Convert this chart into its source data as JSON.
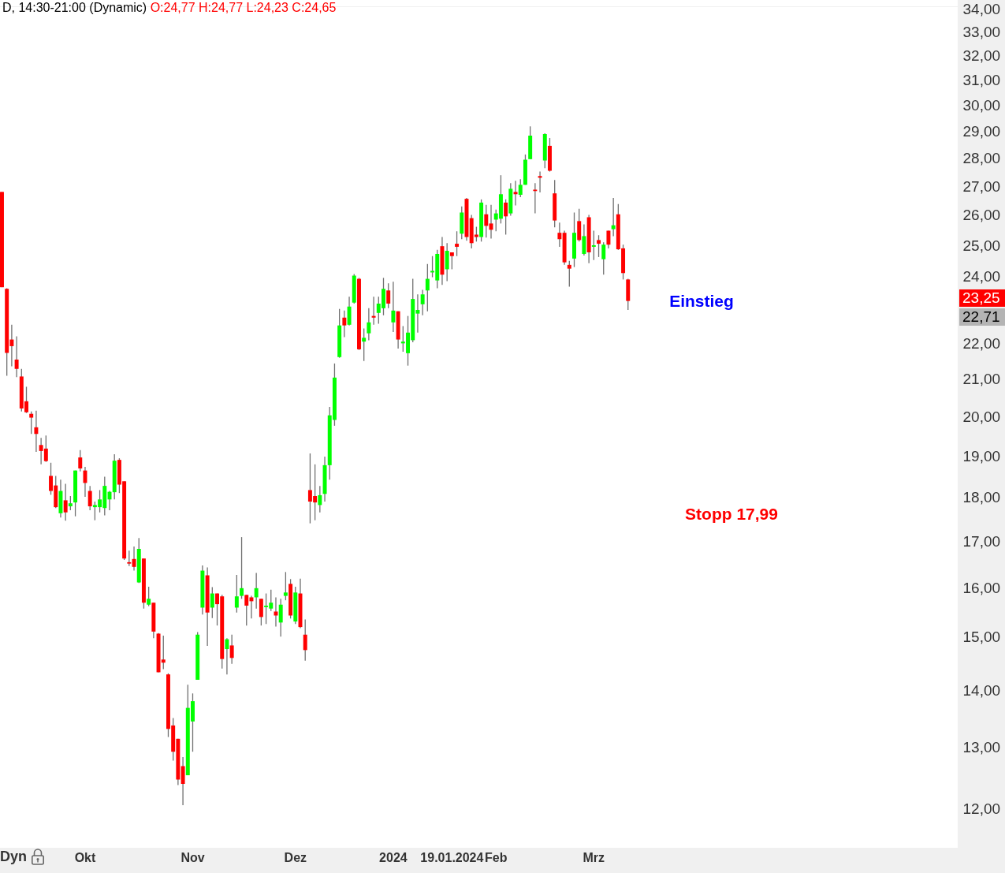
{
  "chart_data": {
    "type": "candlestick",
    "title": "D, 14:30-21:00 (Dynamic)",
    "subtitle": "O:24,77 H:24,77 L:24,23 C:24,65",
    "categories": [
      null,
      null,
      null,
      null,
      null,
      null,
      null,
      null,
      null,
      null,
      null,
      null,
      null,
      null,
      null,
      null,
      null,
      "Okt",
      null,
      null,
      null,
      null,
      null,
      null,
      null,
      null,
      null,
      null,
      null,
      null,
      null,
      null,
      null,
      null,
      null,
      null,
      null,
      null,
      null,
      "Nov",
      null,
      null,
      null,
      null,
      null,
      null,
      null,
      null,
      null,
      null,
      null,
      null,
      null,
      null,
      null,
      null,
      null,
      null,
      null,
      null,
      "Dez",
      null,
      null,
      null,
      null,
      null,
      null,
      null,
      null,
      null,
      null,
      null,
      null,
      null,
      null,
      null,
      null,
      null,
      null,
      null,
      "2024",
      null,
      null,
      null,
      null,
      null,
      null,
      null,
      null,
      null,
      null,
      null,
      "19.01.2024",
      null,
      null,
      null,
      null,
      null,
      null,
      null,
      null,
      "Feb",
      null,
      null,
      null,
      null,
      null,
      null,
      null,
      null,
      null,
      null,
      null,
      null,
      null,
      null,
      null,
      null,
      null,
      null,
      null,
      "Mrz",
      null,
      null,
      null,
      null,
      null,
      null,
      null,
      null,
      null,
      null,
      null,
      null,
      null,
      null,
      null,
      null,
      null,
      null,
      null,
      null,
      null,
      null,
      null,
      null,
      null,
      null,
      null,
      null,
      null,
      null,
      null,
      null,
      null,
      null,
      null,
      null,
      null,
      null,
      null,
      null,
      null,
      null,
      null,
      null,
      null,
      null,
      null,
      null,
      null,
      null,
      null,
      null,
      null,
      null,
      null,
      null,
      null,
      null,
      null,
      null,
      null,
      null,
      null,
      null,
      null,
      null,
      null,
      null,
      null,
      null,
      null,
      null,
      null,
      null
    ],
    "ohlc": [
      [
        26.8,
        26.8,
        23.67,
        23.67
      ],
      [
        23.62,
        23.64,
        21.09,
        21.73
      ],
      [
        22.11,
        22.54,
        21.35,
        21.92
      ],
      [
        21.54,
        22.2,
        21.05,
        21.28
      ],
      [
        21.07,
        21.28,
        20.13,
        20.21
      ],
      [
        20.4,
        20.79,
        20.09,
        20.11
      ],
      [
        20.07,
        20.13,
        19.55,
        19.97
      ],
      [
        19.72,
        20.15,
        19.1,
        19.55
      ],
      [
        19.27,
        19.45,
        18.79,
        19.12
      ],
      [
        19.18,
        19.51,
        18.85,
        18.87
      ],
      [
        18.51,
        18.83,
        18.06,
        18.15
      ],
      [
        18.28,
        18.51,
        17.75,
        17.77
      ],
      [
        17.63,
        18.42,
        17.53,
        18.15
      ],
      [
        17.93,
        18.32,
        17.46,
        17.65
      ],
      [
        17.79,
        18.03,
        17.7,
        17.86
      ],
      [
        17.88,
        18.64,
        17.56,
        18.64
      ],
      [
        18.96,
        19.14,
        18.62,
        18.69
      ],
      [
        18.64,
        18.73,
        18.01,
        18.34
      ],
      [
        18.15,
        18.27,
        17.7,
        17.79
      ],
      [
        17.77,
        17.9,
        17.47,
        17.82
      ],
      [
        17.77,
        18.17,
        17.65,
        17.95
      ],
      [
        17.75,
        18.49,
        17.58,
        18.27
      ],
      [
        17.95,
        18.15,
        17.7,
        18.13
      ],
      [
        18.12,
        19.04,
        17.95,
        18.88
      ],
      [
        18.9,
        18.94,
        18.1,
        18.3
      ],
      [
        18.38,
        18.38,
        16.59,
        16.62
      ],
      [
        16.54,
        16.79,
        16.46,
        16.51
      ],
      [
        16.61,
        16.88,
        16.36,
        16.44
      ],
      [
        16.11,
        17.07,
        16.1,
        16.83
      ],
      [
        16.62,
        16.62,
        15.57,
        15.69
      ],
      [
        15.65,
        16.02,
        15.62,
        15.77
      ],
      [
        15.69,
        15.69,
        14.98,
        15.11
      ],
      [
        15.07,
        15.08,
        14.33,
        14.33
      ],
      [
        14.57,
        15.03,
        14.39,
        14.51
      ],
      [
        14.29,
        14.31,
        13.17,
        13.31
      ],
      [
        13.37,
        13.5,
        12.77,
        12.92
      ],
      [
        13.14,
        13.14,
        12.37,
        12.46
      ],
      [
        12.68,
        12.83,
        12.05,
        12.39
      ],
      [
        12.53,
        14.1,
        12.53,
        13.68
      ],
      [
        13.44,
        13.94,
        12.92,
        13.8
      ],
      [
        14.19,
        15.1,
        14.19,
        15.05
      ],
      [
        15.59,
        16.47,
        15.45,
        16.36
      ],
      [
        16.26,
        16.43,
        14.83,
        15.49
      ],
      [
        15.59,
        16.01,
        15.38,
        15.88
      ],
      [
        15.88,
        15.88,
        15.23,
        15.66
      ],
      [
        15.82,
        15.85,
        14.4,
        14.58
      ],
      [
        14.77,
        14.98,
        14.29,
        14.96
      ],
      [
        14.84,
        15.05,
        14.49,
        14.6
      ],
      [
        15.59,
        16.27,
        15.49,
        15.82
      ],
      [
        15.83,
        17.09,
        15.77,
        15.99
      ],
      [
        15.85,
        15.85,
        15.23,
        15.63
      ],
      [
        15.8,
        15.83,
        15.37,
        15.72
      ],
      [
        15.8,
        16.31,
        15.57,
        15.99
      ],
      [
        15.77,
        15.77,
        15.23,
        15.4
      ],
      [
        15.6,
        15.88,
        15.26,
        15.63
      ],
      [
        15.57,
        15.96,
        15.52,
        15.69
      ],
      [
        15.51,
        15.8,
        15.21,
        15.43
      ],
      [
        15.29,
        15.77,
        15.01,
        15.65
      ],
      [
        15.83,
        16.33,
        15.74,
        15.9
      ],
      [
        16.08,
        16.18,
        15.37,
        15.43
      ],
      [
        15.31,
        16.02,
        15.26,
        15.9
      ],
      [
        15.88,
        16.19,
        15.18,
        15.2
      ],
      [
        15.05,
        15.35,
        14.55,
        14.75
      ],
      [
        18.17,
        19.06,
        17.4,
        17.9
      ],
      [
        18.03,
        18.79,
        17.47,
        17.88
      ],
      [
        17.82,
        18.27,
        17.65,
        18.05
      ],
      [
        18.08,
        18.98,
        17.9,
        18.77
      ],
      [
        18.77,
        20.25,
        18.42,
        20.03
      ],
      [
        19.91,
        21.43,
        19.76,
        21.04
      ],
      [
        21.61,
        23.01,
        21.59,
        22.52
      ],
      [
        22.75,
        22.96,
        22.18,
        22.52
      ],
      [
        22.54,
        23.38,
        22.52,
        23.08
      ],
      [
        23.2,
        24.08,
        23.17,
        24.03
      ],
      [
        23.93,
        23.96,
        21.81,
        21.83
      ],
      [
        22.05,
        22.43,
        21.5,
        22.16
      ],
      [
        22.29,
        23.03,
        22.09,
        22.61
      ],
      [
        22.8,
        23.38,
        22.54,
        22.75
      ],
      [
        22.89,
        23.38,
        22.57,
        23.17
      ],
      [
        23.03,
        23.96,
        22.82,
        23.62
      ],
      [
        23.57,
        23.79,
        23.03,
        23.17
      ],
      [
        22.61,
        23.84,
        22.33,
        22.96
      ],
      [
        22.94,
        22.94,
        21.85,
        22.11
      ],
      [
        22.0,
        22.5,
        21.76,
        22.05
      ],
      [
        21.72,
        22.8,
        21.37,
        22.31
      ],
      [
        22.09,
        23.93,
        22.03,
        23.31
      ],
      [
        22.87,
        23.45,
        22.31,
        22.98
      ],
      [
        23.15,
        23.59,
        22.82,
        23.45
      ],
      [
        23.57,
        24.4,
        22.94,
        23.93
      ],
      [
        24.13,
        24.65,
        23.98,
        24.18
      ],
      [
        23.88,
        24.85,
        23.64,
        24.72
      ],
      [
        24.97,
        25.27,
        23.74,
        24.06
      ],
      [
        24.23,
        25.07,
        23.86,
        24.82
      ],
      [
        24.77,
        24.77,
        24.23,
        24.65
      ],
      [
        25.05,
        25.46,
        24.65,
        24.95
      ],
      [
        25.38,
        26.3,
        25.2,
        26.09
      ],
      [
        26.56,
        26.59,
        25.15,
        25.27
      ],
      [
        25.9,
        26.01,
        24.9,
        25.07
      ],
      [
        25.35,
        25.61,
        25.12,
        25.27
      ],
      [
        25.27,
        26.54,
        25.12,
        26.43
      ],
      [
        26.03,
        26.35,
        25.25,
        25.64
      ],
      [
        25.72,
        26.35,
        25.22,
        25.51
      ],
      [
        25.85,
        26.19,
        25.46,
        26.06
      ],
      [
        25.88,
        27.39,
        25.72,
        26.72
      ],
      [
        26.43,
        26.54,
        25.35,
        25.96
      ],
      [
        26.06,
        27.11,
        25.98,
        26.91
      ],
      [
        26.8,
        27.19,
        26.33,
        26.72
      ],
      [
        26.7,
        27.25,
        26.62,
        27.05
      ],
      [
        27.05,
        28.14,
        27.05,
        27.95
      ],
      [
        27.97,
        29.19,
        27.97,
        28.84
      ],
      [
        26.88,
        27.11,
        26.06,
        26.83
      ],
      [
        27.36,
        27.52,
        26.78,
        27.3
      ],
      [
        27.92,
        28.93,
        27.64,
        28.9
      ],
      [
        28.46,
        28.75,
        27.52,
        27.55
      ],
      [
        26.75,
        27.22,
        25.59,
        25.82
      ],
      [
        25.41,
        25.75,
        24.95,
        25.2
      ],
      [
        25.41,
        25.48,
        24.37,
        24.45
      ],
      [
        24.37,
        24.5,
        23.69,
        24.25
      ],
      [
        24.57,
        26.09,
        24.3,
        25.41
      ],
      [
        25.8,
        26.22,
        25.12,
        25.17
      ],
      [
        24.72,
        25.69,
        24.67,
        25.3
      ],
      [
        25.93,
        26.01,
        24.42,
        24.77
      ],
      [
        24.95,
        25.48,
        24.52,
        25.0
      ],
      [
        25.17,
        25.33,
        24.62,
        25.05
      ],
      [
        24.55,
        25.1,
        24.06,
        25.02
      ],
      [
        25.48,
        25.48,
        24.9,
        25.02
      ],
      [
        25.53,
        26.59,
        25.3,
        25.66
      ],
      [
        26.03,
        26.38,
        24.85,
        24.87
      ],
      [
        24.9,
        25.02,
        23.91,
        24.11
      ],
      [
        23.91,
        23.93,
        22.98,
        23.25
      ],
      null,
      null,
      null,
      null,
      null,
      null,
      null,
      null,
      null,
      null,
      null,
      null,
      null,
      null,
      null,
      null,
      null,
      null,
      null,
      null,
      null,
      null,
      null,
      null,
      null,
      null,
      null,
      null,
      null,
      null,
      null,
      null,
      null,
      null,
      null,
      null,
      null,
      null,
      null,
      null,
      null,
      null,
      null,
      null,
      null,
      null,
      null,
      null,
      null,
      null,
      null,
      null,
      null,
      null,
      null,
      null,
      null,
      null,
      null,
      null,
      null,
      null,
      null,
      null,
      null,
      null,
      null
    ],
    "colors": [
      "#ff0000",
      "#ff0000",
      "#ff0000",
      "#ff0000",
      "#ff0000",
      "#ff0000",
      "#ff0000",
      "#ff0000",
      "#ff0000",
      "#ff0000",
      "#ff0000",
      "#ff0000",
      "#00ff00",
      "#ff0000",
      "#00ff00",
      "#00ff00",
      "#ff0000",
      "#ff0000",
      "#ff0000",
      "#00ff00",
      "#00ff00",
      "#00ff00",
      "#00ff00",
      "#00ff00",
      "#ff0000",
      "#ff0000",
      "#ff0000",
      "#ff0000",
      "#00ff00",
      "#ff0000",
      "#00ff00",
      "#ff0000",
      "#ff0000",
      "#ff0000",
      "#ff0000",
      "#ff0000",
      "#ff0000",
      "#ff0000",
      "#00ff00",
      "#00ff00",
      "#00ff00",
      "#00ff00",
      "#ff0000",
      "#00ff00",
      "#ff0000",
      "#ff0000",
      "#00ff00",
      "#ff0000",
      "#00ff00",
      "#00ff00",
      "#ff0000",
      "#ff0000",
      "#00ff00",
      "#ff0000",
      "#00ff00",
      "#00ff00",
      "#ff0000",
      "#00ff00",
      "#00ff00",
      "#ff0000",
      "#00ff00",
      "#ff0000",
      "#ff0000",
      "#ff0000",
      "#ff0000",
      "#00ff00",
      "#00ff00",
      "#00ff00",
      "#00ff00",
      "#00ff00",
      "#ff0000",
      "#00ff00",
      "#00ff00",
      "#ff0000",
      "#00ff00",
      "#00ff00",
      "#ff0000",
      "#00ff00",
      "#00ff00",
      "#ff0000",
      "#00ff00",
      "#ff0000",
      "#00ff00",
      "#00ff00",
      "#00ff00",
      "#00ff00",
      "#00ff00",
      "#00ff00",
      "#00ff00",
      "#00ff00",
      "#ff0000",
      "#00ff00",
      "#ff0000",
      "#ff0000",
      "#00ff00",
      "#ff0000",
      "#ff0000",
      "#ff0000",
      "#00ff00",
      "#ff0000",
      "#ff0000",
      "#00ff00",
      "#00ff00",
      "#ff0000",
      "#00ff00",
      "#ff0000",
      "#00ff00",
      "#00ff00",
      "#00ff00",
      "#ff0000",
      "#ff0000",
      "#00ff00",
      "#ff0000",
      "#ff0000",
      "#ff0000",
      "#ff0000",
      "#ff0000",
      "#00ff00",
      "#ff0000",
      "#00ff00",
      "#ff0000",
      "#00ff00",
      "#ff0000",
      "#00ff00",
      "#ff0000",
      "#00ff00",
      "#ff0000",
      "#ff0000",
      "#ff0000",
      null,
      null,
      null,
      null,
      null,
      null,
      null,
      null,
      null,
      null,
      null,
      null,
      null,
      null,
      null,
      null,
      null,
      null,
      null,
      null,
      null,
      null,
      null,
      null,
      null,
      null,
      null,
      null,
      null,
      null,
      null,
      null,
      null,
      null,
      null,
      null,
      null,
      null,
      null,
      null,
      null,
      null,
      null,
      null,
      null,
      null,
      null,
      null,
      null,
      null,
      null,
      null,
      null,
      null,
      null,
      null,
      null,
      null,
      null,
      null,
      null,
      null,
      null,
      null,
      null,
      null,
      null
    ],
    "ylim": [
      11.4,
      34.1
    ],
    "yticks": [
      {
        "value": 12,
        "label": "12,00"
      },
      {
        "value": 13,
        "label": "13,00"
      },
      {
        "value": 14,
        "label": "14,00"
      },
      {
        "value": 15,
        "label": "15,00"
      },
      {
        "value": 16,
        "label": "16,00"
      },
      {
        "value": 17,
        "label": "17,00"
      },
      {
        "value": 18,
        "label": "18,00"
      },
      {
        "value": 19,
        "label": "19,00"
      },
      {
        "value": 20,
        "label": "20,00"
      },
      {
        "value": 21,
        "label": "21,00"
      },
      {
        "value": 22,
        "label": "22,00"
      },
      {
        "value": 24,
        "label": "24,00"
      },
      {
        "value": 25,
        "label": "25,00"
      },
      {
        "value": 26,
        "label": "26,00"
      },
      {
        "value": 27,
        "label": "27,00"
      },
      {
        "value": 28,
        "label": "28,00"
      },
      {
        "value": 29,
        "label": "29,00"
      },
      {
        "value": 30,
        "label": "30,00"
      },
      {
        "value": 31,
        "label": "31,00"
      },
      {
        "value": 32,
        "label": "32,00"
      },
      {
        "value": 33,
        "label": "33,00"
      },
      {
        "value": 34,
        "label": "34,00"
      }
    ],
    "log": "y",
    "annotations": [
      "Einstieg",
      "Stopp 17,99",
      "23,25",
      "22,71",
      "Dyn"
    ]
  }
}
